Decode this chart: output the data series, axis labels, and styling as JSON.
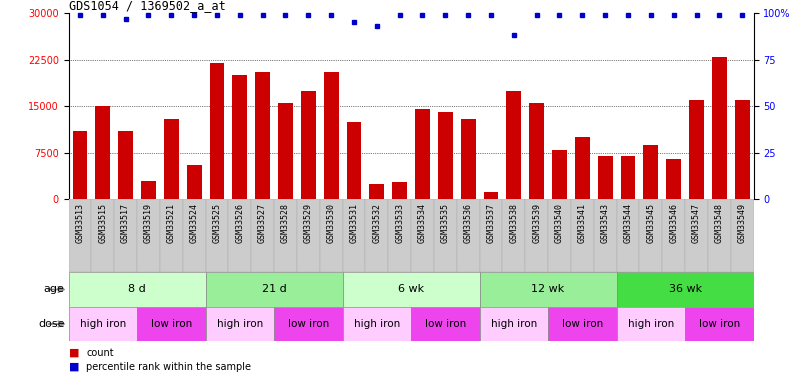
{
  "title": "GDS1054 / 1369502_a_at",
  "samples": [
    "GSM33513",
    "GSM33515",
    "GSM33517",
    "GSM33519",
    "GSM33521",
    "GSM33524",
    "GSM33525",
    "GSM33526",
    "GSM33527",
    "GSM33528",
    "GSM33529",
    "GSM33530",
    "GSM33531",
    "GSM33532",
    "GSM33533",
    "GSM33534",
    "GSM33535",
    "GSM33536",
    "GSM33537",
    "GSM33538",
    "GSM33539",
    "GSM33540",
    "GSM33541",
    "GSM33543",
    "GSM33544",
    "GSM33545",
    "GSM33546",
    "GSM33547",
    "GSM33548",
    "GSM33549"
  ],
  "counts": [
    11000,
    15000,
    11000,
    3000,
    13000,
    5500,
    22000,
    20000,
    20500,
    15500,
    17500,
    20500,
    12500,
    2500,
    2800,
    14500,
    14000,
    13000,
    1200,
    17500,
    15500,
    8000,
    10000,
    7000,
    7000,
    8800,
    6500,
    16000,
    23000,
    16000
  ],
  "percentile": [
    99,
    99,
    97,
    99,
    99,
    99,
    99,
    99,
    99,
    99,
    99,
    99,
    95,
    93,
    99,
    99,
    99,
    99,
    99,
    88,
    99,
    99,
    99,
    99,
    99,
    99,
    99,
    99,
    99,
    99
  ],
  "bar_color": "#cc0000",
  "dot_color": "#0000cc",
  "ylim_left": [
    0,
    30000
  ],
  "ylim_right": [
    0,
    100
  ],
  "yticks_left": [
    0,
    7500,
    15000,
    22500,
    30000
  ],
  "yticks_right": [
    0,
    25,
    50,
    75,
    100
  ],
  "age_groups": [
    {
      "label": "8 d",
      "start": 0,
      "end": 6,
      "color": "#ccffcc"
    },
    {
      "label": "21 d",
      "start": 6,
      "end": 12,
      "color": "#99ee99"
    },
    {
      "label": "6 wk",
      "start": 12,
      "end": 18,
      "color": "#ccffcc"
    },
    {
      "label": "12 wk",
      "start": 18,
      "end": 24,
      "color": "#99ee99"
    },
    {
      "label": "36 wk",
      "start": 24,
      "end": 30,
      "color": "#44dd44"
    }
  ],
  "dose_groups": [
    {
      "label": "high iron",
      "start": 0,
      "end": 3,
      "color": "#ffccff"
    },
    {
      "label": "low iron",
      "start": 3,
      "end": 6,
      "color": "#ee44ee"
    },
    {
      "label": "high iron",
      "start": 6,
      "end": 9,
      "color": "#ffccff"
    },
    {
      "label": "low iron",
      "start": 9,
      "end": 12,
      "color": "#ee44ee"
    },
    {
      "label": "high iron",
      "start": 12,
      "end": 15,
      "color": "#ffccff"
    },
    {
      "label": "low iron",
      "start": 15,
      "end": 18,
      "color": "#ee44ee"
    },
    {
      "label": "high iron",
      "start": 18,
      "end": 21,
      "color": "#ffccff"
    },
    {
      "label": "low iron",
      "start": 21,
      "end": 24,
      "color": "#ee44ee"
    },
    {
      "label": "high iron",
      "start": 24,
      "end": 27,
      "color": "#ffccff"
    },
    {
      "label": "low iron",
      "start": 27,
      "end": 30,
      "color": "#ee44ee"
    }
  ],
  "xtick_bg": "#cccccc",
  "background_color": "#ffffff",
  "label_fontsize": 6.0,
  "tick_fontsize": 7.0,
  "age_fontsize": 8.0,
  "dose_fontsize": 7.5
}
